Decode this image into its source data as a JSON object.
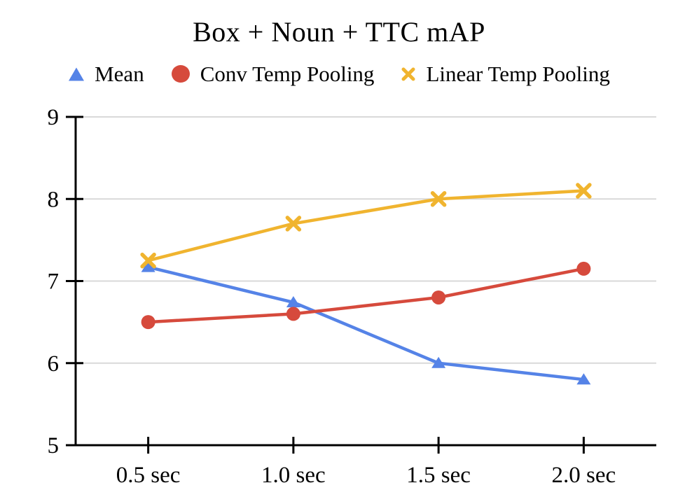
{
  "title": "Box + Noun + TTC mAP",
  "background_color": "#ffffff",
  "chart_data": {
    "type": "line",
    "title": "Box + Noun + TTC mAP",
    "categories": [
      "0.5 sec",
      "1.0 sec",
      "1.5 sec",
      "2.0 sec"
    ],
    "series": [
      {
        "name": "Mean",
        "marker": "triangle",
        "color": "#5583e7",
        "values": [
          7.17,
          6.74,
          6.0,
          5.8
        ]
      },
      {
        "name": "Conv Temp Pooling",
        "marker": "circle",
        "color": "#d64a3c",
        "values": [
          6.5,
          6.6,
          6.8,
          7.15
        ]
      },
      {
        "name": "Linear Temp Pooling",
        "marker": "x",
        "color": "#f0b42f",
        "values": [
          7.25,
          7.7,
          8.0,
          8.1
        ]
      }
    ],
    "xlabel": "",
    "ylabel": "",
    "ylim": [
      5,
      9
    ],
    "y_ticks": [
      9,
      8,
      7,
      6,
      5
    ],
    "grid": "horizontal",
    "grid_color": "#d9d9d9",
    "axis_color": "#000000",
    "legend_position": "top"
  }
}
